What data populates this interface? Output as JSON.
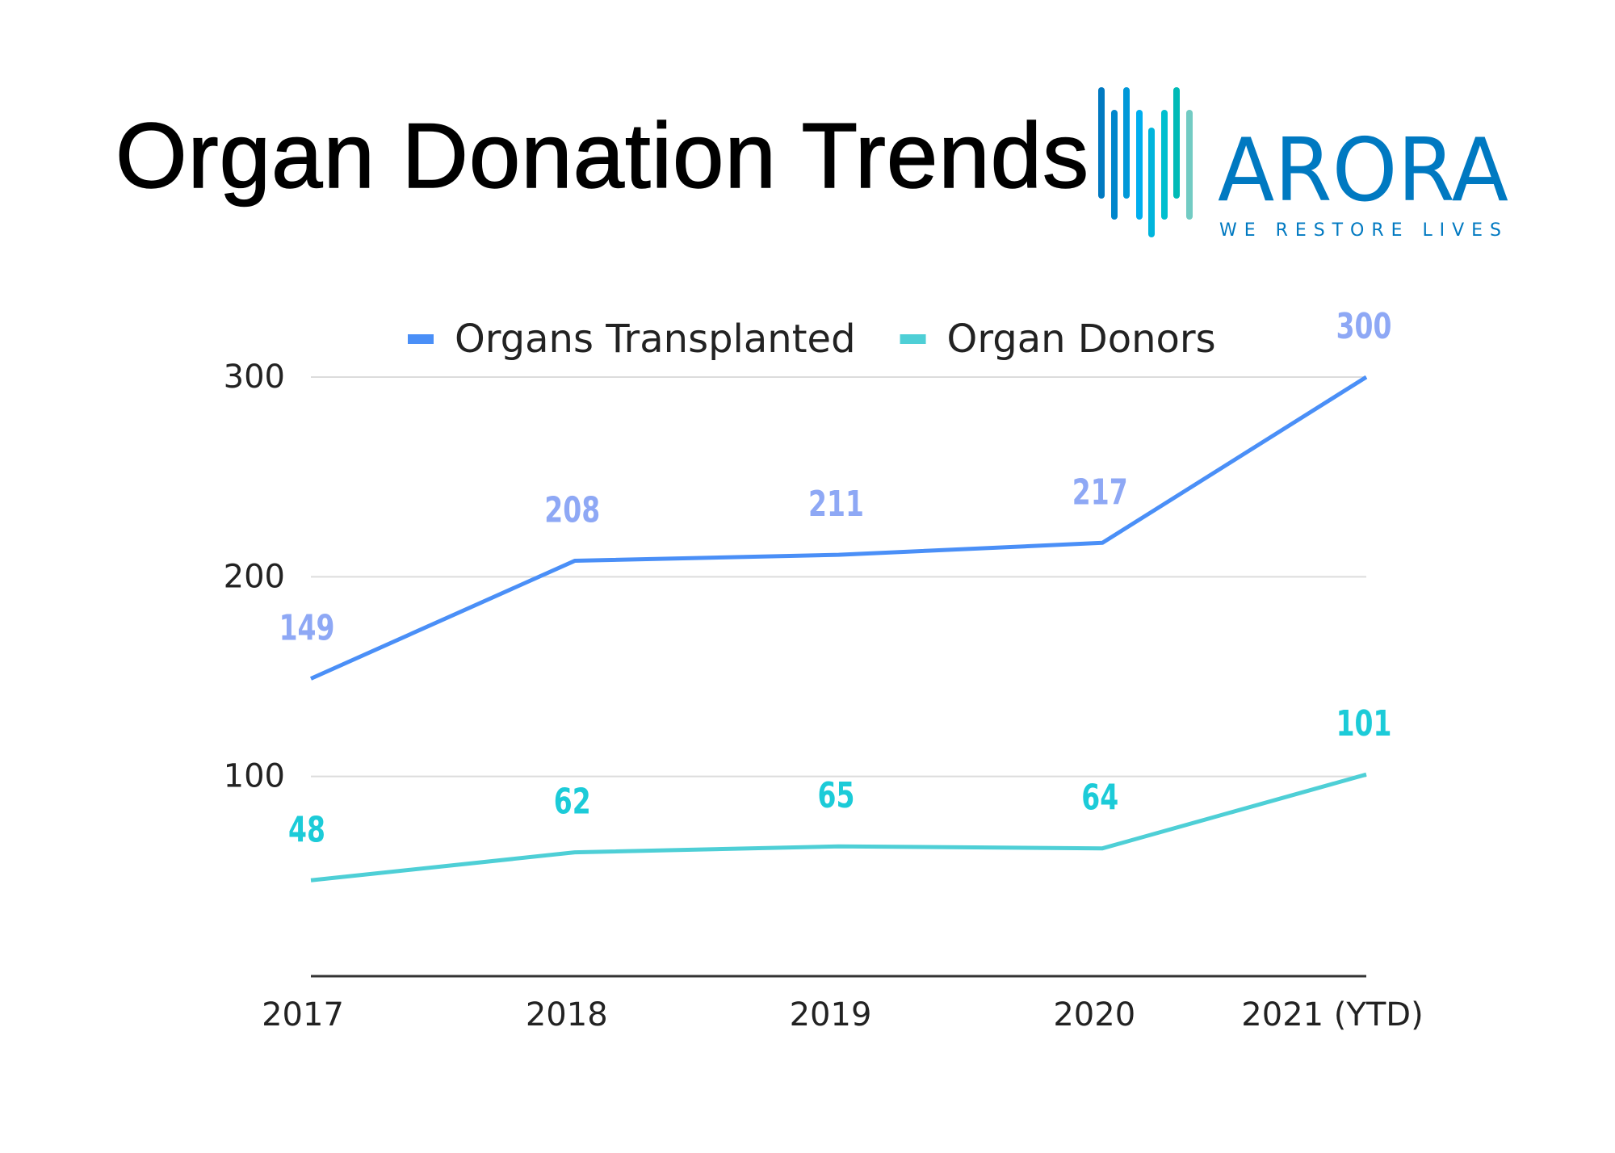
{
  "title": "Organ Donation Trends",
  "logo": {
    "name": "ARORA",
    "tagline": "WE RESTORE LIVES",
    "color": "#0079c1"
  },
  "chart_data": {
    "type": "line",
    "title": "Organ Donation Trends",
    "categories": [
      "2017",
      "2018",
      "2019",
      "2020",
      "2021 (YTD)"
    ],
    "series": [
      {
        "name": "Organs Transplanted",
        "values": [
          149,
          208,
          211,
          217,
          300
        ],
        "color": "#4a8ff7",
        "label_color": "#8ea8f5"
      },
      {
        "name": "Organ Donors",
        "values": [
          48,
          62,
          65,
          64,
          101
        ],
        "color": "#4ecfd6",
        "label_color": "#1ccbd8"
      }
    ],
    "ylim": [
      0,
      300
    ],
    "yticks": [
      100,
      200,
      300
    ],
    "grid": true,
    "legend": "top",
    "data_labels": true,
    "xlabel": "",
    "ylabel": ""
  }
}
